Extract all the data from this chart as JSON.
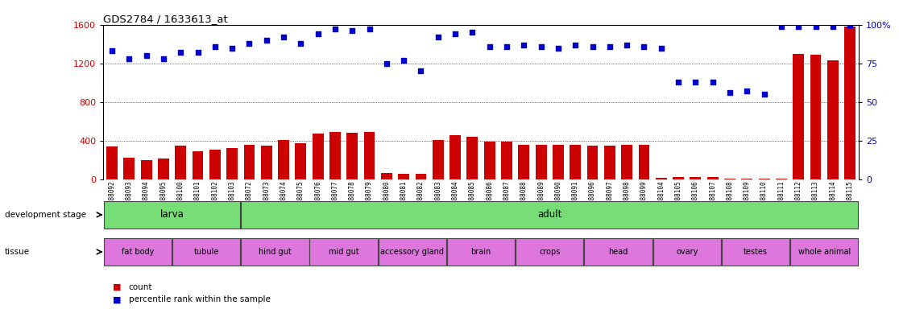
{
  "title": "GDS2784 / 1633613_at",
  "samples": [
    "GSM188092",
    "GSM188093",
    "GSM188094",
    "GSM188095",
    "GSM188100",
    "GSM188101",
    "GSM188102",
    "GSM188103",
    "GSM188072",
    "GSM188073",
    "GSM188074",
    "GSM188075",
    "GSM188076",
    "GSM188077",
    "GSM188078",
    "GSM188079",
    "GSM188080",
    "GSM188081",
    "GSM188082",
    "GSM188083",
    "GSM188084",
    "GSM188085",
    "GSM188086",
    "GSM188087",
    "GSM188088",
    "GSM188089",
    "GSM188090",
    "GSM188091",
    "GSM188096",
    "GSM188097",
    "GSM188098",
    "GSM188099",
    "GSM188104",
    "GSM188105",
    "GSM188106",
    "GSM188107",
    "GSM188108",
    "GSM188109",
    "GSM188110",
    "GSM188111",
    "GSM188112",
    "GSM188113",
    "GSM188114",
    "GSM188115"
  ],
  "count": [
    340,
    220,
    200,
    215,
    350,
    290,
    310,
    325,
    360,
    345,
    405,
    370,
    470,
    490,
    480,
    490,
    65,
    55,
    60,
    410,
    460,
    440,
    390,
    390,
    355,
    355,
    355,
    355,
    350,
    345,
    355,
    355,
    15,
    20,
    25,
    20,
    5,
    5,
    5,
    5,
    1300,
    1290,
    1230,
    1580
  ],
  "percentile": [
    83,
    78,
    80,
    78,
    82,
    82,
    86,
    85,
    88,
    90,
    92,
    88,
    94,
    97,
    96,
    97,
    75,
    77,
    70,
    92,
    94,
    95,
    86,
    86,
    87,
    86,
    85,
    87,
    86,
    86,
    87,
    86,
    85,
    63,
    63,
    63,
    56,
    57,
    55,
    99,
    99,
    99,
    99,
    100
  ],
  "ylim_left": [
    0,
    1600
  ],
  "ylim_right": [
    0,
    100
  ],
  "yticks_left": [
    0,
    400,
    800,
    1200,
    1600
  ],
  "yticks_right": [
    0,
    25,
    50,
    75,
    100
  ],
  "bar_color": "#cc0000",
  "dot_color": "#0000cc",
  "development_stage_groups": [
    {
      "label": "larva",
      "start": 0,
      "end": 8,
      "color": "#77dd77"
    },
    {
      "label": "adult",
      "start": 8,
      "end": 44,
      "color": "#77dd77"
    }
  ],
  "tissue_groups": [
    {
      "label": "fat body",
      "start": 0,
      "end": 4,
      "color": "#dd77dd"
    },
    {
      "label": "tubule",
      "start": 4,
      "end": 8,
      "color": "#dd77dd"
    },
    {
      "label": "hind gut",
      "start": 8,
      "end": 12,
      "color": "#dd77dd"
    },
    {
      "label": "mid gut",
      "start": 12,
      "end": 16,
      "color": "#dd77dd"
    },
    {
      "label": "accessory gland",
      "start": 16,
      "end": 20,
      "color": "#dd77dd"
    },
    {
      "label": "brain",
      "start": 20,
      "end": 24,
      "color": "#dd77dd"
    },
    {
      "label": "crops",
      "start": 24,
      "end": 28,
      "color": "#dd77dd"
    },
    {
      "label": "head",
      "start": 28,
      "end": 32,
      "color": "#dd77dd"
    },
    {
      "label": "ovary",
      "start": 32,
      "end": 36,
      "color": "#dd77dd"
    },
    {
      "label": "testes",
      "start": 36,
      "end": 40,
      "color": "#dd77dd"
    },
    {
      "label": "whole animal",
      "start": 40,
      "end": 44,
      "color": "#dd77dd"
    }
  ],
  "legend_count_color": "#cc0000",
  "legend_dot_color": "#0000cc",
  "bg_color": "#ffffff",
  "tick_label_color_left": "#cc0000",
  "tick_label_color_right": "#0000cc"
}
